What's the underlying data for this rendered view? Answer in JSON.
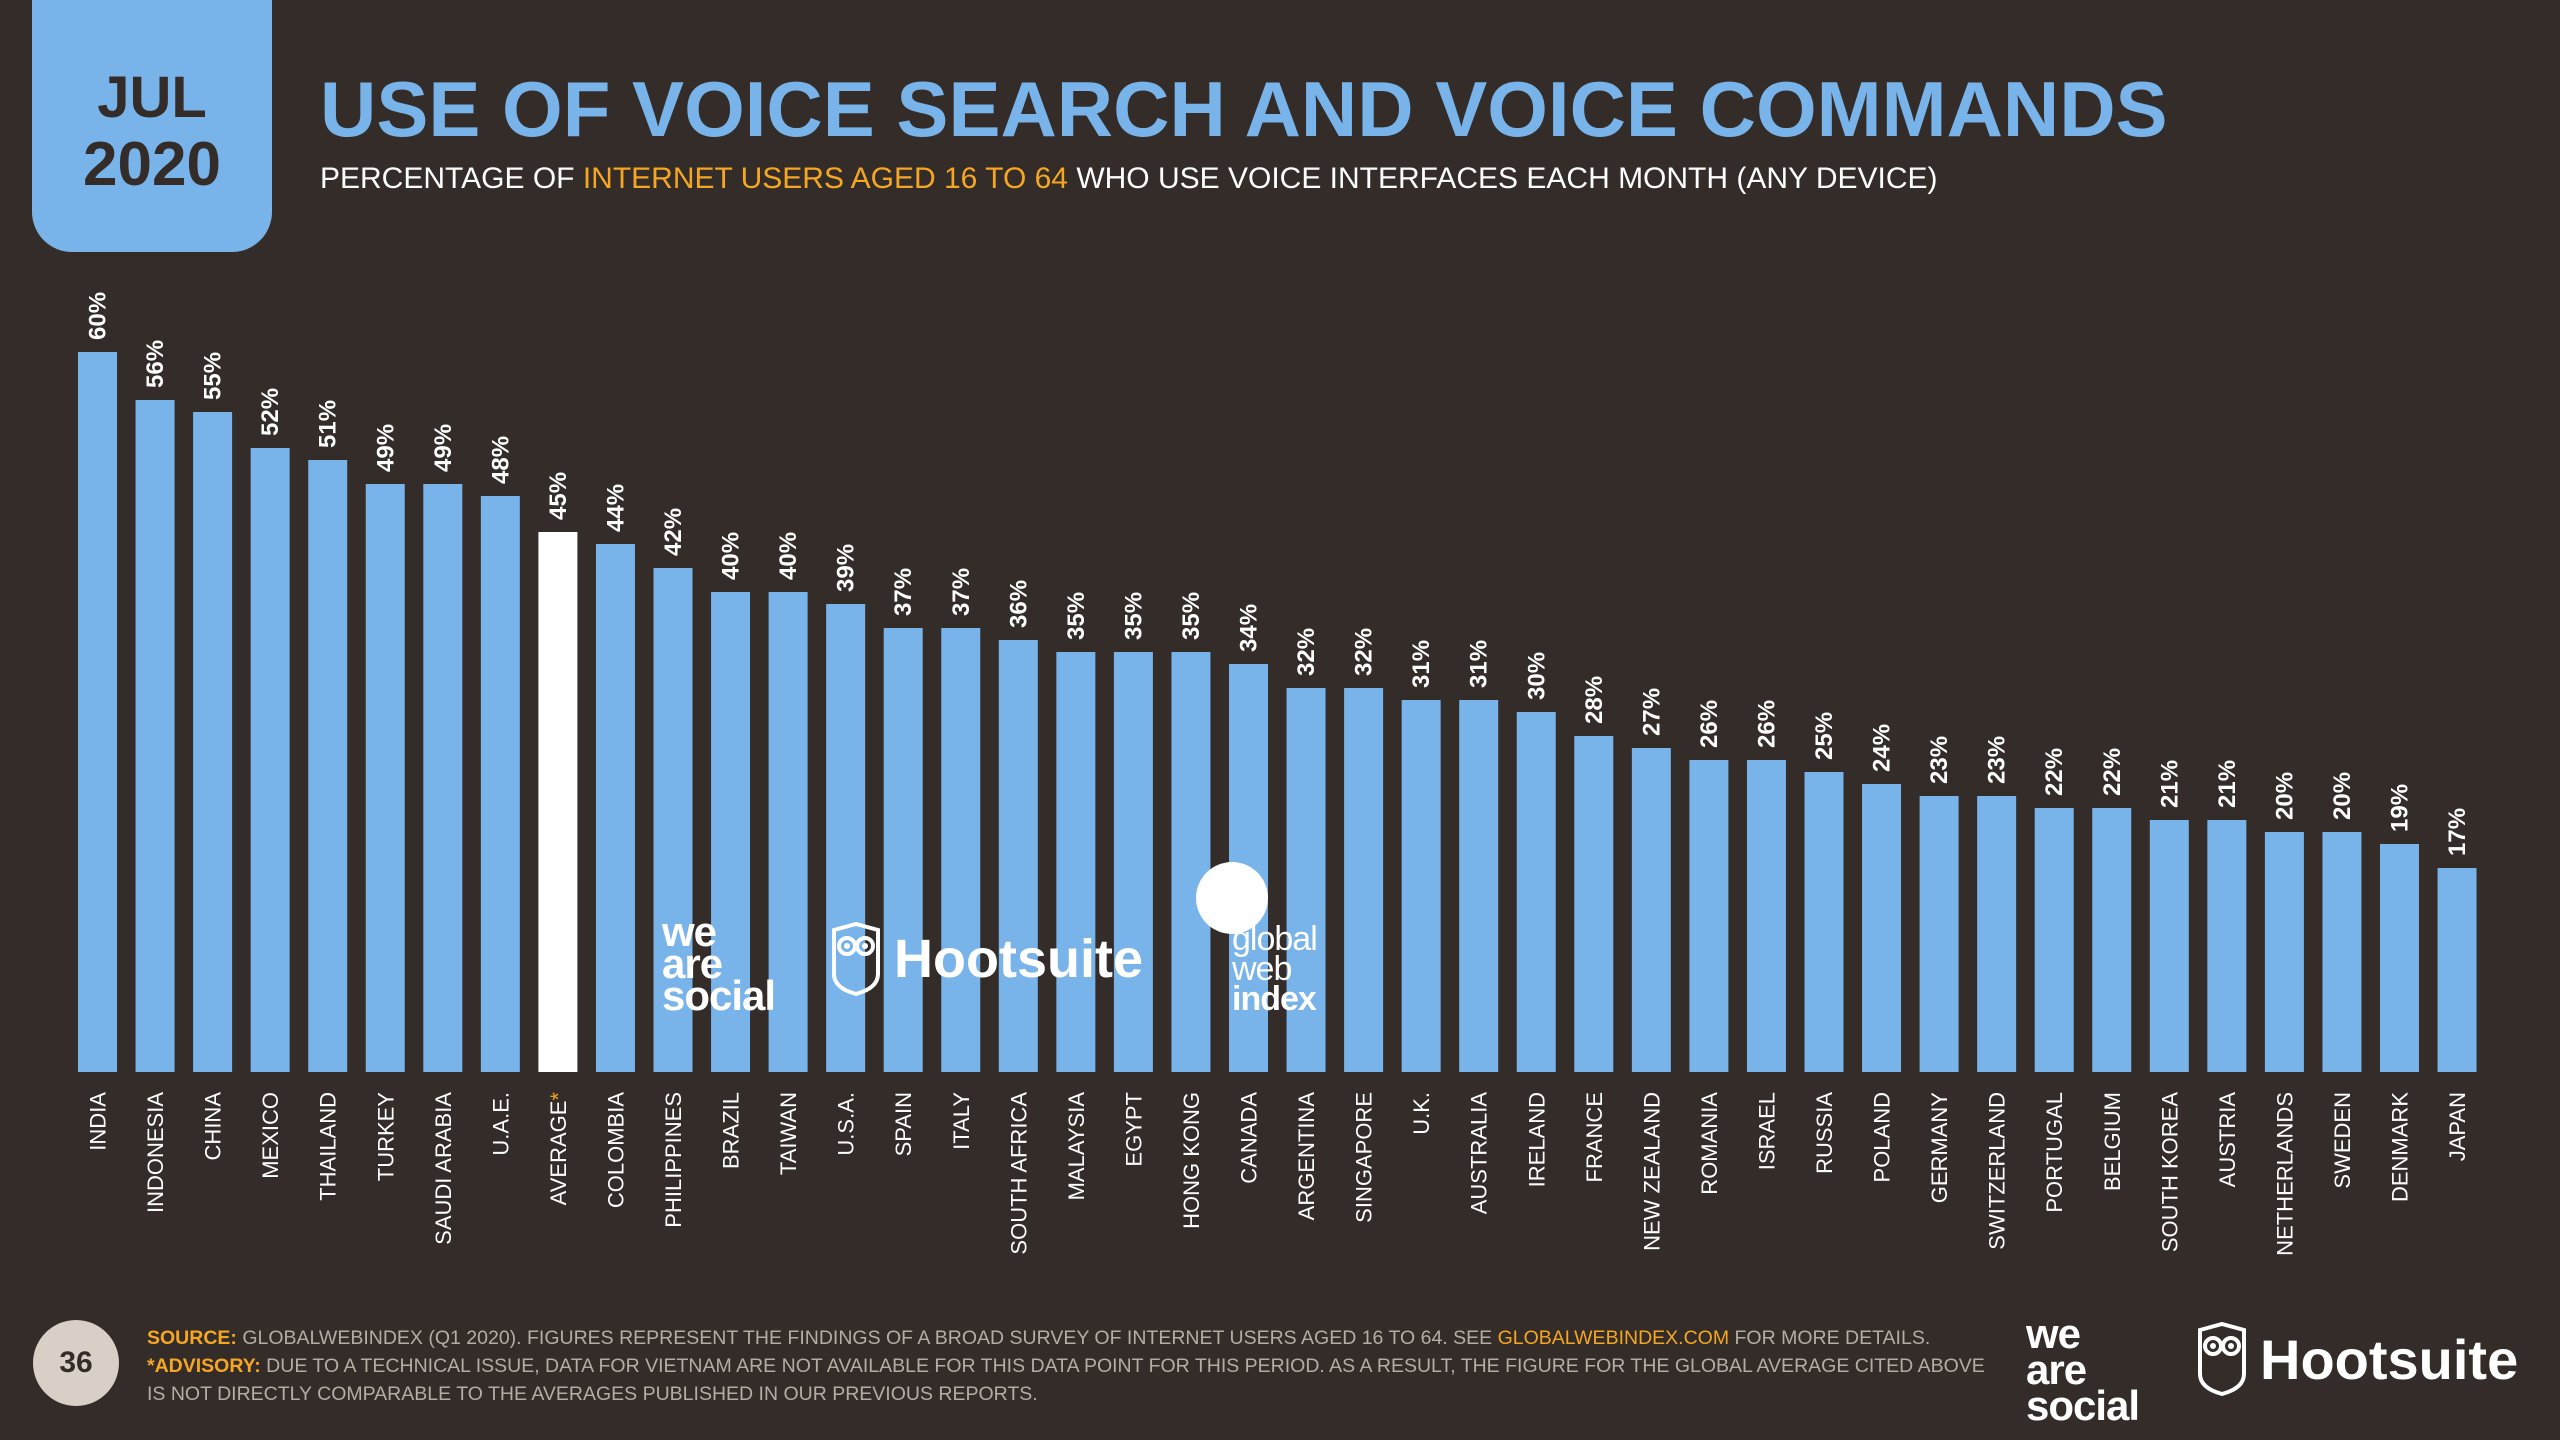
{
  "header": {
    "month": "JUL",
    "year": "2020",
    "title": "USE OF VOICE SEARCH AND VOICE COMMANDS",
    "subtitle_pre": "PERCENTAGE OF ",
    "subtitle_highlight": "INTERNET USERS AGED 16 TO 64",
    "subtitle_post": " WHO USE VOICE INTERFACES EACH MONTH (ANY DEVICE)"
  },
  "chart_data": {
    "type": "bar",
    "categories": [
      "INDIA",
      "INDONESIA",
      "CHINA",
      "MEXICO",
      "THAILAND",
      "TURKEY",
      "SAUDI ARABIA",
      "U.A.E.",
      "AVERAGE*",
      "COLOMBIA",
      "PHILIPPINES",
      "BRAZIL",
      "TAIWAN",
      "U.S.A.",
      "SPAIN",
      "ITALY",
      "SOUTH AFRICA",
      "MALAYSIA",
      "EGYPT",
      "HONG KONG",
      "CANADA",
      "ARGENTINA",
      "SINGAPORE",
      "U.K.",
      "AUSTRALIA",
      "IRELAND",
      "FRANCE",
      "NEW ZEALAND",
      "ROMANIA",
      "ISRAEL",
      "RUSSIA",
      "POLAND",
      "GERMANY",
      "SWITZERLAND",
      "PORTUGAL",
      "BELGIUM",
      "SOUTH KOREA",
      "AUSTRIA",
      "NETHERLANDS",
      "SWEDEN",
      "DENMARK",
      "JAPAN"
    ],
    "values": [
      60,
      56,
      55,
      52,
      51,
      49,
      49,
      48,
      45,
      44,
      42,
      40,
      40,
      39,
      37,
      37,
      36,
      35,
      35,
      35,
      34,
      32,
      32,
      31,
      31,
      30,
      28,
      27,
      26,
      26,
      25,
      24,
      23,
      23,
      22,
      22,
      21,
      21,
      20,
      20,
      19,
      17
    ],
    "labels": [
      "60%",
      "56%",
      "55%",
      "52%",
      "51%",
      "49%",
      "49%",
      "48%",
      "45%",
      "44%",
      "42%",
      "40%",
      "40%",
      "39%",
      "37%",
      "37%",
      "36%",
      "35%",
      "35%",
      "35%",
      "34%",
      "32%",
      "32%",
      "31%",
      "31%",
      "30%",
      "28%",
      "27%",
      "26%",
      "26%",
      "25%",
      "24%",
      "23%",
      "23%",
      "22%",
      "22%",
      "21%",
      "21%",
      "20%",
      "20%",
      "19%",
      "17%"
    ],
    "highlight_index": 8,
    "ylim": [
      0,
      60
    ],
    "grid": false,
    "colors": {
      "bar": "#78b3ea",
      "highlight": "#ffffff",
      "label": "#ffffff",
      "average_mark": "#f5a623"
    }
  },
  "watermarks": {
    "was": [
      "we",
      "are",
      "social"
    ],
    "hootsuite": "Hootsuite",
    "gwi": [
      "global",
      "web",
      "index"
    ]
  },
  "footer": {
    "page_number": "36",
    "source_label": "SOURCE:",
    "source_text": " GLOBALWEBINDEX (Q1 2020). FIGURES REPRESENT THE FINDINGS OF A BROAD SURVEY OF INTERNET USERS AGED 16 TO 64. SEE ",
    "source_link": "GLOBALWEBINDEX.COM",
    "source_tail": " FOR MORE DETAILS.",
    "advisory_label": "*ADVISORY:",
    "advisory_text": " DUE TO A TECHNICAL ISSUE, DATA FOR VIETNAM ARE NOT AVAILABLE FOR THIS DATA POINT FOR THIS PERIOD. AS A RESULT, THE FIGURE FOR THE GLOBAL AVERAGE CITED ABOVE IS NOT DIRECTLY COMPARABLE TO THE AVERAGES PUBLISHED IN OUR PREVIOUS REPORTS.",
    "logo_was": [
      "we",
      "are",
      "social"
    ],
    "logo_hootsuite": "Hootsuite"
  }
}
